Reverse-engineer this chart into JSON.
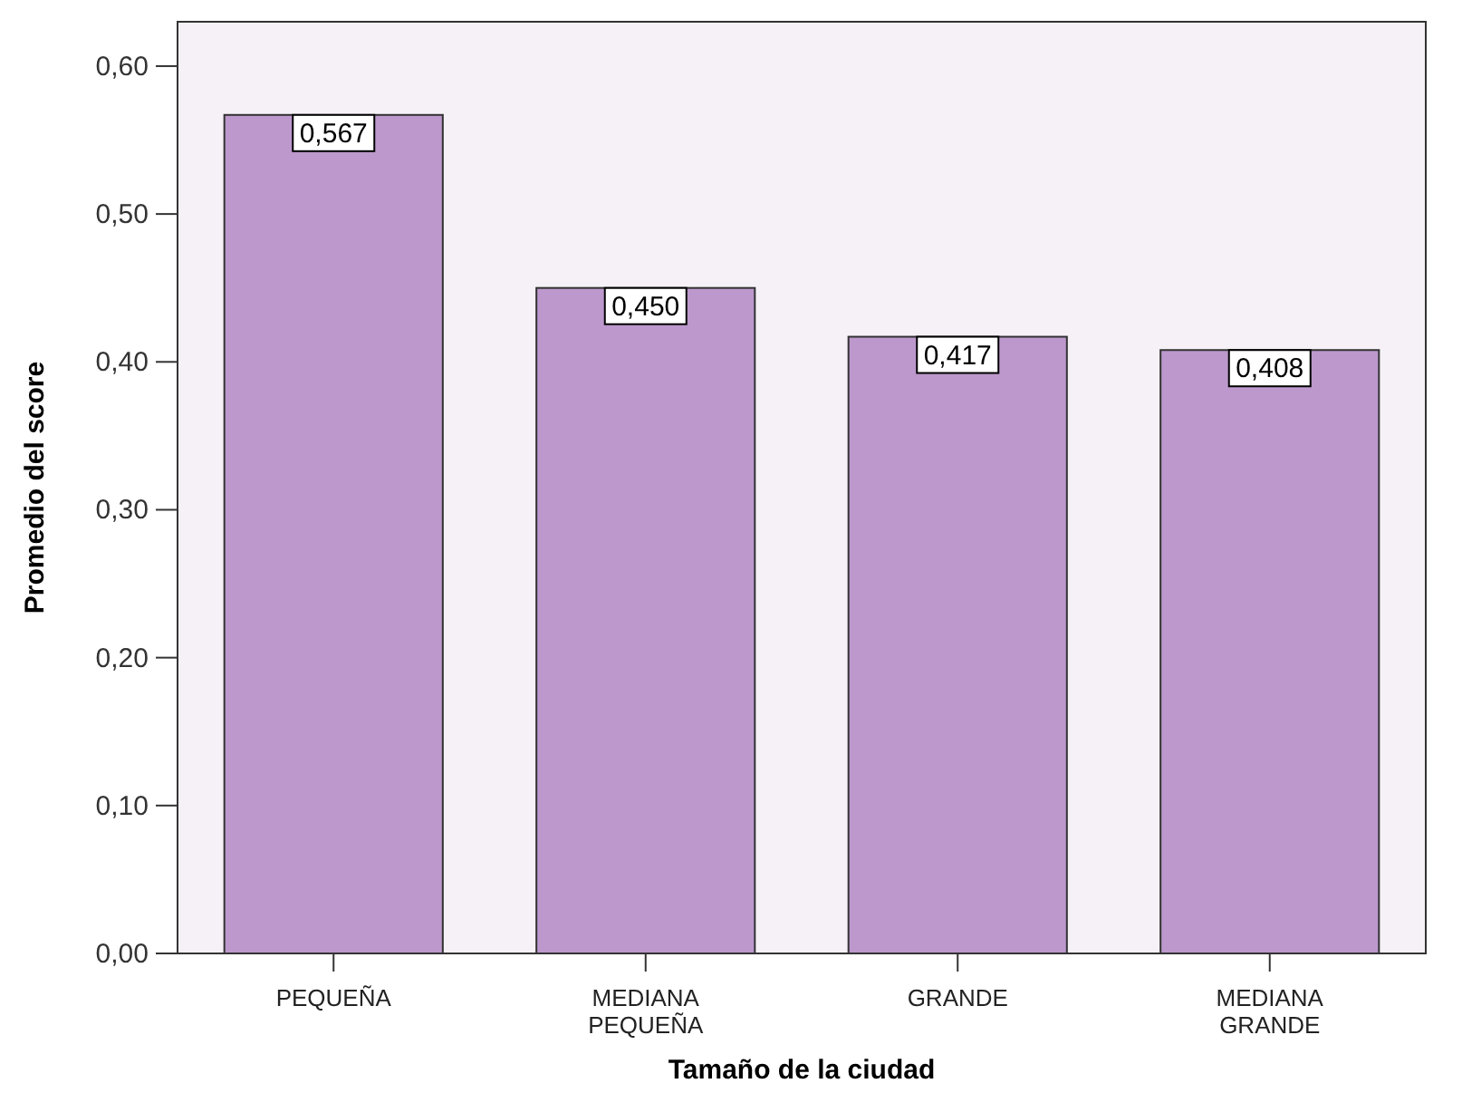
{
  "chart_data": {
    "type": "bar",
    "xlabel": "Tamaño de la ciudad",
    "ylabel": "Promedio del score",
    "categories": [
      "PEQUEÑA",
      "MEDIANA\nPEQUEÑA",
      "GRANDE",
      "MEDIANA\nGRANDE"
    ],
    "values": [
      0.567,
      0.45,
      0.417,
      0.408
    ],
    "value_labels": [
      "0,567",
      "0,450",
      "0,417",
      "0,408"
    ],
    "color": "#bc98cc",
    "ylim": [
      0,
      0.63
    ],
    "yticks": [
      {
        "value": 0,
        "label": "0,00"
      },
      {
        "value": 0.1,
        "label": "0,10"
      },
      {
        "value": 0.2,
        "label": "0,20"
      },
      {
        "value": 0.3,
        "label": "0,30"
      },
      {
        "value": 0.4,
        "label": "0,40"
      },
      {
        "value": 0.5,
        "label": "0,50"
      },
      {
        "value": 0.6,
        "label": "0,60"
      }
    ],
    "grid": false
  }
}
